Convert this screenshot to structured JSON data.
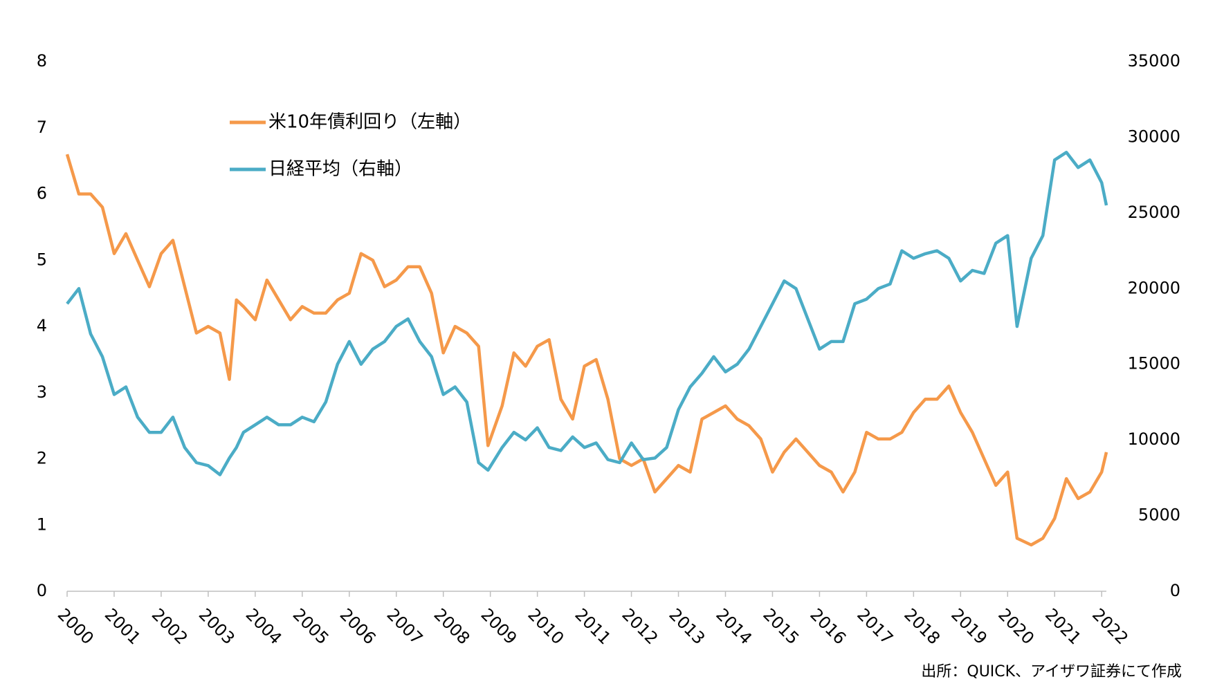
{
  "chart_data": {
    "type": "line",
    "x": [
      2000.0,
      2000.25,
      2000.5,
      2000.75,
      2001.0,
      2001.25,
      2001.5,
      2001.75,
      2002.0,
      2002.25,
      2002.5,
      2002.75,
      2003.0,
      2003.25,
      2003.45,
      2003.6,
      2003.75,
      2004.0,
      2004.25,
      2004.5,
      2004.75,
      2005.0,
      2005.25,
      2005.5,
      2005.75,
      2006.0,
      2006.25,
      2006.5,
      2006.75,
      2007.0,
      2007.25,
      2007.5,
      2007.75,
      2008.0,
      2008.25,
      2008.5,
      2008.75,
      2008.95,
      2009.25,
      2009.5,
      2009.75,
      2010.0,
      2010.25,
      2010.5,
      2010.75,
      2011.0,
      2011.25,
      2011.5,
      2011.75,
      2012.0,
      2012.25,
      2012.5,
      2012.75,
      2013.0,
      2013.25,
      2013.5,
      2013.75,
      2014.0,
      2014.25,
      2014.5,
      2014.75,
      2015.0,
      2015.25,
      2015.5,
      2015.75,
      2016.0,
      2016.25,
      2016.5,
      2016.75,
      2017.0,
      2017.25,
      2017.5,
      2017.75,
      2018.0,
      2018.25,
      2018.5,
      2018.75,
      2019.0,
      2019.25,
      2019.5,
      2019.75,
      2020.0,
      2020.2,
      2020.5,
      2020.75,
      2021.0,
      2021.25,
      2021.5,
      2021.75,
      2022.0,
      2022.1
    ],
    "series": [
      {
        "name": "米10年債利回り（左軸）",
        "color": "#f5994a",
        "axis": "y",
        "values": [
          6.6,
          6.0,
          6.0,
          5.8,
          5.1,
          5.4,
          5.0,
          4.6,
          5.1,
          5.3,
          4.6,
          3.9,
          4.0,
          3.9,
          3.2,
          4.4,
          4.3,
          4.1,
          4.7,
          4.4,
          4.1,
          4.3,
          4.2,
          4.2,
          4.4,
          4.5,
          5.1,
          5.0,
          4.6,
          4.7,
          4.9,
          4.9,
          4.5,
          3.6,
          4.0,
          3.9,
          3.7,
          2.2,
          2.8,
          3.6,
          3.4,
          3.7,
          3.8,
          2.9,
          2.6,
          3.4,
          3.5,
          2.9,
          2.0,
          1.9,
          2.0,
          1.5,
          1.7,
          1.9,
          1.8,
          2.6,
          2.7,
          2.8,
          2.6,
          2.5,
          2.3,
          1.8,
          2.1,
          2.3,
          2.1,
          1.9,
          1.8,
          1.5,
          1.8,
          2.4,
          2.3,
          2.3,
          2.4,
          2.7,
          2.9,
          2.9,
          3.1,
          2.7,
          2.4,
          2.0,
          1.6,
          1.8,
          0.8,
          0.7,
          0.8,
          1.1,
          1.7,
          1.4,
          1.5,
          1.8,
          2.1
        ]
      },
      {
        "name": "日経平均（右軸）",
        "color": "#4bacc6",
        "axis": "y2",
        "values": [
          19000,
          20000,
          17000,
          15500,
          13000,
          13500,
          11500,
          10500,
          10500,
          11500,
          9500,
          8500,
          8300,
          7700,
          8800,
          9500,
          10500,
          11000,
          11500,
          11000,
          11000,
          11500,
          11200,
          12500,
          15000,
          16500,
          15000,
          16000,
          16500,
          17500,
          18000,
          16500,
          15500,
          13000,
          13500,
          12500,
          8500,
          8000,
          9500,
          10500,
          10000,
          10800,
          9500,
          9300,
          10200,
          9500,
          9800,
          8700,
          8500,
          9800,
          8700,
          8800,
          9500,
          12000,
          13500,
          14400,
          15500,
          14500,
          15000,
          16000,
          17500,
          19000,
          20500,
          20000,
          18000,
          16000,
          16500,
          16500,
          19000,
          19300,
          20000,
          20300,
          22500,
          22000,
          22300,
          22500,
          22000,
          20500,
          21200,
          21000,
          23000,
          23500,
          17500,
          22000,
          23500,
          28500,
          29000,
          28000,
          28500,
          27000,
          25500
        ]
      }
    ],
    "xlim": [
      2000,
      2022.1
    ],
    "xticks": [
      2000,
      2001,
      2002,
      2003,
      2004,
      2005,
      2006,
      2007,
      2008,
      2009,
      2010,
      2011,
      2012,
      2013,
      2014,
      2015,
      2016,
      2017,
      2018,
      2019,
      2020,
      2021,
      2022
    ],
    "ylim": [
      0,
      8
    ],
    "yticks": [
      0,
      1,
      2,
      3,
      4,
      5,
      6,
      7,
      8
    ],
    "y2lim": [
      0,
      35000
    ],
    "y2ticks": [
      0,
      5000,
      10000,
      15000,
      20000,
      25000,
      30000,
      35000
    ],
    "legend": "upper left",
    "source": "出所：QUICK、アイザワ証券にて作成"
  }
}
